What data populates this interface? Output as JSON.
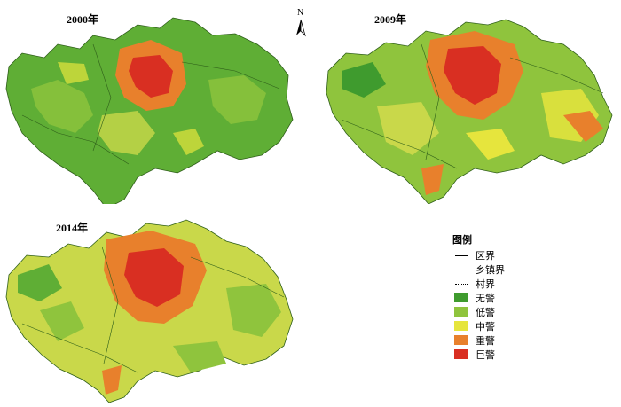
{
  "maps": [
    {
      "title": "2000年"
    },
    {
      "title": "2009年"
    },
    {
      "title": "2014年"
    }
  ],
  "north_arrow": {
    "label": "N"
  },
  "legend": {
    "title": "图例",
    "items": [
      {
        "label": "区界",
        "symbol": "solid-line",
        "color": "#000000"
      },
      {
        "label": "乡镇界",
        "symbol": "solid-line",
        "color": "#000000"
      },
      {
        "label": "村界",
        "symbol": "dotted-line",
        "color": "#000000"
      },
      {
        "label": "无警",
        "symbol": "fill",
        "color": "#3f9b2e"
      },
      {
        "label": "低警",
        "symbol": "fill",
        "color": "#8fc43d"
      },
      {
        "label": "中警",
        "symbol": "fill",
        "color": "#e6e53d"
      },
      {
        "label": "重警",
        "symbol": "fill",
        "color": "#e8802c"
      },
      {
        "label": "巨警",
        "symbol": "fill",
        "color": "#d92f22"
      }
    ]
  }
}
